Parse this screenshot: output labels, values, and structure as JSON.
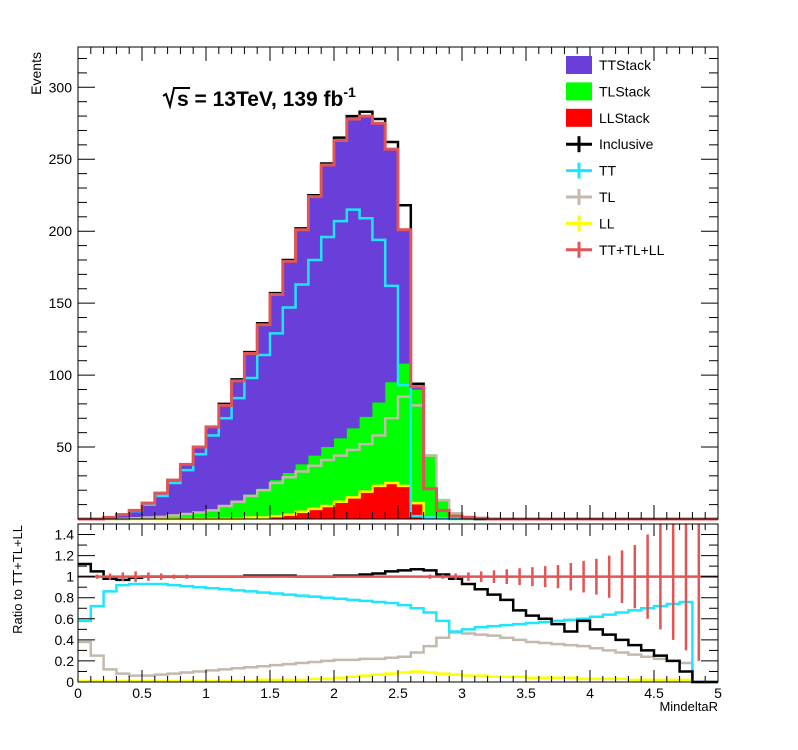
{
  "chart_data": [
    {
      "type": "area",
      "panel": "main",
      "ylabel": "Events",
      "annotation": {
        "sqrt": "s",
        "text": " = 13TeV, 139 fb",
        "superscript": "-1"
      },
      "xlim": [
        0,
        5
      ],
      "ylim": [
        0,
        328
      ],
      "xticks": [
        0,
        0.5,
        1,
        1.5,
        2,
        2.5,
        3,
        3.5,
        4,
        4.5,
        5
      ],
      "yticks": [
        {
          "value": 50,
          "label": "50"
        },
        {
          "value": 100,
          "label": "100"
        },
        {
          "value": 150,
          "label": "150"
        },
        {
          "value": 200,
          "label": "200"
        },
        {
          "value": 250,
          "label": "250"
        },
        {
          "value": 300,
          "label": "300"
        }
      ],
      "bin_width": 0.1,
      "legend_position": "top-right",
      "legend": [
        {
          "label": "TTStack",
          "kind": "fill",
          "color": "#6a3ed8"
        },
        {
          "label": "TLStack",
          "kind": "fill",
          "color": "#00ff00"
        },
        {
          "label": "LLStack",
          "kind": "fill",
          "color": "#ff0000"
        },
        {
          "label": "Inclusive",
          "kind": "line",
          "color": "#000000"
        },
        {
          "label": "TT",
          "kind": "line",
          "color": "#1fe6ff"
        },
        {
          "label": "TL",
          "kind": "line",
          "color": "#c4b9ad"
        },
        {
          "label": "LL",
          "kind": "line",
          "color": "#ffff00"
        },
        {
          "label": "TT+TL+LL",
          "kind": "line",
          "color": "#e05555"
        }
      ],
      "series": {
        "inclusive": [
          0,
          0,
          1,
          3,
          6,
          11,
          18,
          27,
          38,
          50,
          64,
          80,
          97,
          116,
          136,
          157,
          180,
          202,
          225,
          247,
          265,
          280,
          283,
          278,
          262,
          218,
          94,
          21,
          6,
          2,
          1,
          0,
          0,
          0,
          0,
          0,
          0,
          0,
          0,
          0,
          0,
          0,
          0,
          0,
          0,
          0,
          0,
          0,
          0,
          0
        ],
        "total": [
          0,
          0,
          1,
          3,
          6,
          11,
          18,
          27,
          38,
          50,
          64,
          79,
          96,
          115,
          135,
          156,
          179,
          201,
          224,
          246,
          263,
          278,
          280,
          275,
          257,
          201,
          92,
          21,
          6,
          2,
          1,
          0.5,
          0,
          0,
          0,
          0,
          0,
          0,
          0,
          0,
          0,
          0,
          0,
          0,
          0,
          0,
          0,
          0,
          0,
          0
        ],
        "tl_plus_ll": [
          0,
          0,
          0,
          0,
          0.5,
          1,
          1.5,
          2.5,
          3.5,
          4.5,
          6,
          9,
          12,
          17,
          21,
          27,
          32,
          38,
          44,
          50,
          56,
          63,
          71,
          81,
          95,
          108,
          90,
          45,
          14,
          4,
          1.5,
          0.5,
          0,
          0,
          0,
          0,
          0,
          0,
          0,
          0,
          0,
          0,
          0,
          0,
          0,
          0,
          0,
          0,
          0,
          0
        ],
        "tt": [
          0,
          0,
          1,
          3,
          5.5,
          10,
          16,
          25,
          34,
          45,
          58,
          70,
          84,
          98,
          114,
          129,
          147,
          163,
          180,
          196,
          207,
          215,
          209,
          194,
          162,
          93,
          2,
          1,
          0.5,
          0,
          0,
          0,
          0,
          0,
          0,
          0,
          0,
          0,
          0,
          0,
          0,
          0,
          0,
          0,
          0,
          0,
          0,
          0,
          0,
          0
        ],
        "tl": [
          0,
          0,
          0,
          0,
          0.5,
          1,
          1.5,
          2.5,
          3.5,
          4.5,
          6,
          9,
          12,
          16,
          20,
          25,
          29,
          33,
          37,
          41,
          44,
          48,
          52,
          58,
          70,
          85,
          79,
          44,
          13,
          4,
          1.5,
          0.5,
          0,
          0,
          0,
          0,
          0,
          0,
          0,
          0,
          0,
          0,
          0,
          0,
          0,
          0,
          0,
          0,
          0,
          0
        ],
        "ll": [
          0,
          0,
          0,
          0,
          0,
          0,
          0,
          0,
          0,
          0,
          0,
          0,
          0,
          1,
          1,
          2,
          3,
          5,
          7,
          9,
          12,
          15,
          19,
          23,
          25,
          23,
          11,
          1,
          0.5,
          0,
          0,
          0,
          0,
          0,
          0,
          0,
          0,
          0,
          0,
          0,
          0,
          0,
          0,
          0,
          0,
          0,
          0,
          0,
          0,
          0
        ]
      }
    },
    {
      "type": "line",
      "panel": "ratio",
      "xlabel": "MindeltaR",
      "ylabel": "Ratio to TT+TL+LL",
      "xlim": [
        0,
        5
      ],
      "ylim": [
        0,
        1.5
      ],
      "xticks": [
        {
          "value": 0,
          "label": "0"
        },
        {
          "value": 0.5,
          "label": "0.5"
        },
        {
          "value": 1,
          "label": "1"
        },
        {
          "value": 1.5,
          "label": "1.5"
        },
        {
          "value": 2,
          "label": "2"
        },
        {
          "value": 2.5,
          "label": "2.5"
        },
        {
          "value": 3,
          "label": "3"
        },
        {
          "value": 3.5,
          "label": "3.5"
        },
        {
          "value": 4,
          "label": "4"
        },
        {
          "value": 4.5,
          "label": "4.5"
        },
        {
          "value": 5,
          "label": "5"
        }
      ],
      "yticks": [
        {
          "value": 0,
          "label": "0"
        },
        {
          "value": 0.2,
          "label": "0.2"
        },
        {
          "value": 0.4,
          "label": "0.4"
        },
        {
          "value": 0.6,
          "label": "0.6"
        },
        {
          "value": 0.8,
          "label": "0.8"
        },
        {
          "value": 1,
          "label": "1"
        },
        {
          "value": 1.2,
          "label": "1.2"
        },
        {
          "value": 1.4,
          "label": "1.4"
        }
      ],
      "bin_width": 0.1,
      "series": {
        "inclusive_ratio": [
          1.12,
          1.05,
          0.98,
          0.97,
          0.99,
          1.0,
          1.0,
          1.0,
          1.0,
          1.0,
          1.0,
          1.0,
          1.0,
          1.01,
          1.01,
          1.01,
          1.01,
          1.0,
          1.0,
          1.0,
          1.01,
          1.01,
          1.02,
          1.03,
          1.05,
          1.06,
          1.07,
          1.06,
          1.02,
          0.98,
          0.93,
          0.88,
          0.83,
          0.78,
          0.68,
          0.63,
          0.6,
          0.55,
          0.48,
          0.58,
          0.5,
          0.45,
          0.4,
          0.35,
          0.3,
          0.25,
          0.2,
          0.1,
          0,
          0
        ],
        "tt_ratio": [
          0.58,
          0.72,
          0.86,
          0.92,
          0.93,
          0.93,
          0.93,
          0.92,
          0.91,
          0.9,
          0.89,
          0.88,
          0.87,
          0.86,
          0.85,
          0.84,
          0.83,
          0.82,
          0.81,
          0.8,
          0.79,
          0.78,
          0.77,
          0.76,
          0.75,
          0.73,
          0.7,
          0.66,
          0.58,
          0.48,
          0.5,
          0.52,
          0.53,
          0.54,
          0.55,
          0.56,
          0.57,
          0.58,
          0.59,
          0.6,
          0.62,
          0.64,
          0.66,
          0.68,
          0.7,
          0.72,
          0.74,
          0.76,
          0,
          0
        ],
        "tl_ratio": [
          0.38,
          0.25,
          0.12,
          0.08,
          0.06,
          0.06,
          0.07,
          0.08,
          0.09,
          0.1,
          0.11,
          0.12,
          0.13,
          0.14,
          0.15,
          0.16,
          0.17,
          0.18,
          0.19,
          0.2,
          0.21,
          0.21,
          0.22,
          0.22,
          0.23,
          0.24,
          0.28,
          0.34,
          0.42,
          0.47,
          0.46,
          0.45,
          0.44,
          0.42,
          0.4,
          0.38,
          0.37,
          0.36,
          0.35,
          0.34,
          0.32,
          0.3,
          0.28,
          0.26,
          0.24,
          0.22,
          0.2,
          0.18,
          0,
          0
        ],
        "ll_ratio": [
          0.01,
          0.01,
          0.01,
          0.01,
          0.01,
          0.01,
          0.01,
          0.01,
          0.01,
          0.01,
          0.01,
          0.01,
          0.01,
          0.01,
          0.02,
          0.02,
          0.02,
          0.02,
          0.03,
          0.03,
          0.04,
          0.05,
          0.06,
          0.07,
          0.08,
          0.09,
          0.1,
          0.09,
          0.08,
          0.07,
          0.06,
          0.06,
          0.05,
          0.05,
          0.05,
          0.04,
          0.04,
          0.04,
          0.04,
          0.03,
          0.03,
          0.03,
          0.03,
          0.02,
          0.02,
          0.02,
          0.02,
          0.02,
          0,
          0
        ],
        "total_ratio": 1.0,
        "total_ratio_errors": [
          0.0,
          0.02,
          0.03,
          0.04,
          0.05,
          0.04,
          0.03,
          0.02,
          0.02,
          0.01,
          0.01,
          0.01,
          0.01,
          0.01,
          0.01,
          0.01,
          0.01,
          0.01,
          0.01,
          0.01,
          0.01,
          0.01,
          0.01,
          0.01,
          0.01,
          0.01,
          0.01,
          0.02,
          0.02,
          0.03,
          0.04,
          0.05,
          0.06,
          0.07,
          0.08,
          0.09,
          0.1,
          0.11,
          0.13,
          0.15,
          0.17,
          0.2,
          0.25,
          0.3,
          0.4,
          0.5,
          0.6,
          0.7,
          0.8,
          0.0
        ]
      }
    }
  ]
}
